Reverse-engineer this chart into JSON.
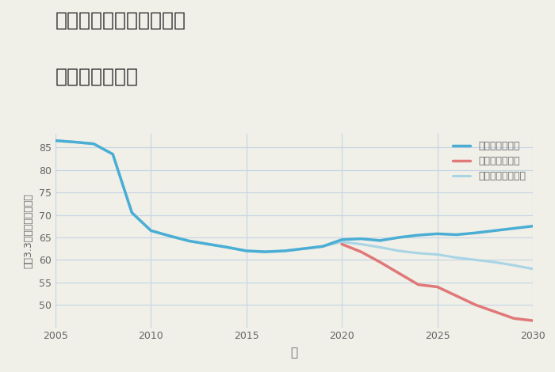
{
  "title_line1": "奈良県奈良市鶴舞東町の",
  "title_line2": "土地の価格推移",
  "xlabel": "年",
  "ylabel": "坪（3.3㎡）単価（万円）",
  "background_color": "#f0efe8",
  "plot_background": "#f0efe8",
  "grid_color": "#c5d5e5",
  "xlim": [
    2005,
    2030
  ],
  "ylim": [
    45,
    88
  ],
  "yticks": [
    50,
    55,
    60,
    65,
    70,
    75,
    80,
    85
  ],
  "xticks": [
    2005,
    2010,
    2015,
    2020,
    2025,
    2030
  ],
  "good_color": "#4aaed4",
  "good_label": "グッドシナリオ",
  "good_x": [
    2005,
    2006,
    2007,
    2008,
    2009,
    2010,
    2011,
    2012,
    2013,
    2014,
    2015,
    2016,
    2017,
    2018,
    2019,
    2020,
    2021,
    2022,
    2023,
    2024,
    2025,
    2026,
    2027,
    2028,
    2029,
    2030
  ],
  "good_y": [
    86.5,
    86.2,
    85.8,
    83.5,
    70.5,
    66.5,
    65.3,
    64.2,
    63.5,
    62.8,
    62.0,
    61.8,
    62.0,
    62.5,
    63.0,
    64.5,
    64.7,
    64.3,
    65.0,
    65.5,
    65.8,
    65.6,
    66.0,
    66.5,
    67.0,
    67.5
  ],
  "bad_color": "#e07878",
  "bad_label": "バッドシナリオ",
  "bad_x": [
    2020,
    2021,
    2022,
    2023,
    2024,
    2025,
    2026,
    2027,
    2028,
    2029,
    2030
  ],
  "bad_y": [
    63.5,
    61.8,
    59.5,
    57.0,
    54.5,
    54.0,
    52.0,
    50.0,
    48.5,
    47.0,
    46.5
  ],
  "normal_color": "#a8d5e5",
  "normal_label": "ノーマルシナリオ",
  "normal_x": [
    2005,
    2006,
    2007,
    2008,
    2009,
    2010,
    2011,
    2012,
    2013,
    2014,
    2015,
    2016,
    2017,
    2018,
    2019,
    2020,
    2021,
    2022,
    2023,
    2024,
    2025,
    2026,
    2027,
    2028,
    2029,
    2030
  ],
  "normal_y": [
    86.5,
    86.2,
    85.8,
    83.5,
    70.5,
    66.5,
    65.3,
    64.2,
    63.5,
    62.8,
    62.0,
    61.8,
    62.0,
    62.5,
    63.0,
    64.0,
    63.5,
    62.8,
    62.0,
    61.5,
    61.2,
    60.5,
    60.0,
    59.5,
    58.8,
    58.0
  ],
  "title_color": "#333333",
  "tick_color": "#666666",
  "label_color": "#666666"
}
